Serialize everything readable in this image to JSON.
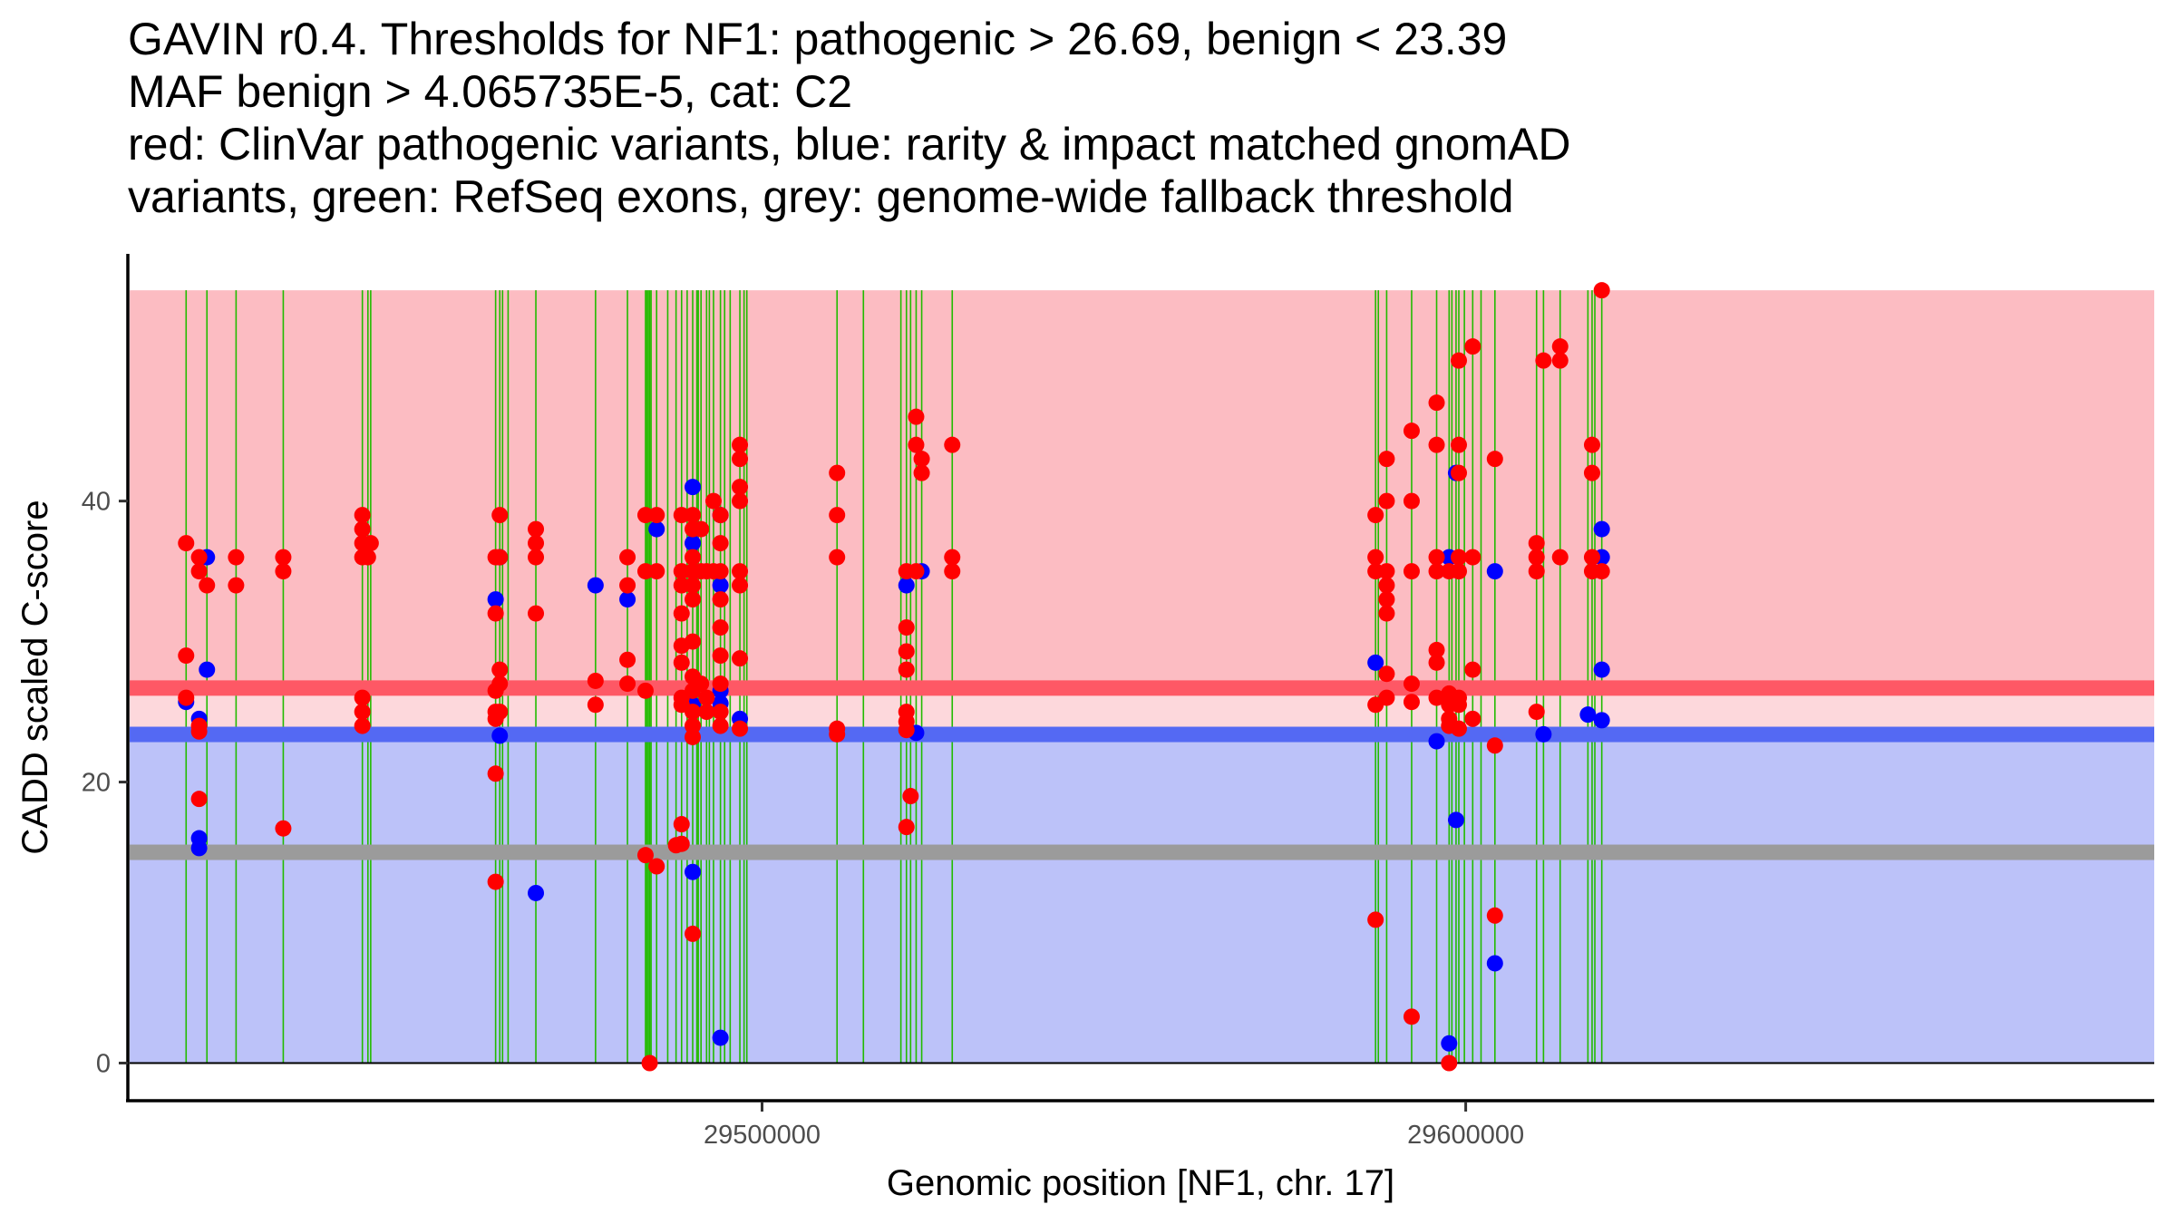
{
  "chart_data": {
    "type": "scatter",
    "title_lines": [
      "GAVIN r0.4. Thresholds for NF1: pathogenic > 26.69, benign < 23.39",
      "MAF benign > 4.065735E-5, cat: C2",
      "red: ClinVar pathogenic variants, blue: rarity & impact matched gnomAD",
      "variants, green: RefSeq exons, grey: genome-wide fallback threshold"
    ],
    "xlabel": "Genomic position [NF1, chr. 17]",
    "ylabel": "CADD scaled C-score",
    "xlim": [
      29408000,
      29696000
    ],
    "ylim": [
      -5.5,
      57
    ],
    "x_ticks": [
      29500000,
      29600000
    ],
    "x_tick_labels": [
      "29500000",
      "29600000"
    ],
    "y_ticks": [
      0,
      20,
      40
    ],
    "y_tick_labels": [
      "0",
      "20",
      "40"
    ],
    "grid": false,
    "regions": [
      {
        "name": "pathogenic-region",
        "ymin": 26.69,
        "ymax": 55,
        "color": "#fcbcc2"
      },
      {
        "name": "vous-region",
        "ymin": 23.39,
        "ymax": 26.69,
        "color": "#fdd8dc"
      },
      {
        "name": "benign-region",
        "ymin": 0,
        "ymax": 23.39,
        "color": "#bcc2f9"
      }
    ],
    "thresholds": [
      {
        "name": "pathogenic-threshold",
        "value": 26.69,
        "color": "#fe5865"
      },
      {
        "name": "benign-threshold",
        "value": 23.39,
        "color": "#5469f3"
      },
      {
        "name": "fallback-threshold",
        "value": 15.0,
        "color": "#9b9b9b"
      }
    ],
    "exons": [
      29418152,
      29421110,
      29425252,
      29431958,
      29443200,
      29443990,
      29444384,
      29462136,
      29462728,
      29463122,
      29463911,
      29467856,
      29476337,
      29480874,
      29483438,
      29483635,
      29483832,
      29484030,
      29484227,
      29485016,
      29486594,
      29487777,
      29488566,
      29489355,
      29490144,
      29490736,
      29490933,
      29491327,
      29492116,
      29492511,
      29493103,
      29494089,
      29494681,
      29495470,
      29496850,
      29497442,
      29497837,
      29510657,
      29514404,
      29519730,
      29520519,
      29521110,
      29521899,
      29522688,
      29527027,
      29587187,
      29587581,
      29588765,
      29592315,
      29595866,
      29597641,
      29598035,
      29598627,
      29599021,
      29599810,
      29600994,
      29602177,
      29604150,
      29610067,
      29611053,
      29613420,
      29617365,
      29617957,
      29618351,
      29619337
    ],
    "exon_color": "#22bb00",
    "series": [
      {
        "name": "ClinVar pathogenic",
        "color": "#ff0000",
        "points": [
          [
            29420000,
            36
          ],
          [
            29420000,
            35
          ],
          [
            29420000,
            24
          ],
          [
            29420000,
            23.6
          ],
          [
            29420000,
            18.8
          ],
          [
            29418152,
            37
          ],
          [
            29418152,
            29
          ],
          [
            29418152,
            26
          ],
          [
            29421110,
            34
          ],
          [
            29425252,
            36
          ],
          [
            29425252,
            34
          ],
          [
            29431958,
            36
          ],
          [
            29431958,
            35
          ],
          [
            29431958,
            16.7
          ],
          [
            29443200,
            39
          ],
          [
            29443200,
            38
          ],
          [
            29443200,
            37
          ],
          [
            29443200,
            36
          ],
          [
            29443200,
            26
          ],
          [
            29443200,
            25
          ],
          [
            29443200,
            24
          ],
          [
            29443990,
            36
          ],
          [
            29444384,
            37
          ],
          [
            29462136,
            36
          ],
          [
            29462136,
            32
          ],
          [
            29462136,
            26.5
          ],
          [
            29462136,
            25
          ],
          [
            29462136,
            24.5
          ],
          [
            29462136,
            20.6
          ],
          [
            29462136,
            12.9
          ],
          [
            29462728,
            39
          ],
          [
            29462728,
            36
          ],
          [
            29462728,
            28
          ],
          [
            29462728,
            27
          ],
          [
            29462728,
            25
          ],
          [
            29467856,
            38
          ],
          [
            29467856,
            37
          ],
          [
            29467856,
            36
          ],
          [
            29467856,
            32
          ],
          [
            29476337,
            27.2
          ],
          [
            29476337,
            25.5
          ],
          [
            29480874,
            36
          ],
          [
            29480874,
            34
          ],
          [
            29480874,
            28.7
          ],
          [
            29480874,
            27
          ],
          [
            29483438,
            39
          ],
          [
            29483438,
            35
          ],
          [
            29483438,
            26.5
          ],
          [
            29483438,
            14.8
          ],
          [
            29484030,
            0
          ],
          [
            29485016,
            39
          ],
          [
            29485016,
            35
          ],
          [
            29485016,
            14
          ],
          [
            29487777,
            15.5
          ],
          [
            29488566,
            39
          ],
          [
            29488566,
            35
          ],
          [
            29488566,
            34
          ],
          [
            29488566,
            32
          ],
          [
            29488566,
            29.7
          ],
          [
            29488566,
            28.5
          ],
          [
            29488566,
            26
          ],
          [
            29488566,
            25.5
          ],
          [
            29488566,
            17
          ],
          [
            29488566,
            15.6
          ],
          [
            29490144,
            39
          ],
          [
            29490144,
            38
          ],
          [
            29490144,
            36
          ],
          [
            29490144,
            35
          ],
          [
            29490144,
            34
          ],
          [
            29490144,
            33
          ],
          [
            29490144,
            30
          ],
          [
            29490144,
            27.5
          ],
          [
            29490144,
            26.5
          ],
          [
            29490144,
            25
          ],
          [
            29490144,
            24
          ],
          [
            29490144,
            23.2
          ],
          [
            29490144,
            9.2
          ],
          [
            29491327,
            38
          ],
          [
            29491327,
            35
          ],
          [
            29491327,
            27
          ],
          [
            29492116,
            35
          ],
          [
            29492116,
            26
          ],
          [
            29492116,
            25
          ],
          [
            29493103,
            40
          ],
          [
            29493103,
            35
          ],
          [
            29494089,
            39
          ],
          [
            29494089,
            37
          ],
          [
            29494089,
            35
          ],
          [
            29494089,
            33
          ],
          [
            29494089,
            31
          ],
          [
            29494089,
            29
          ],
          [
            29494089,
            27
          ],
          [
            29494089,
            25
          ],
          [
            29494089,
            24
          ],
          [
            29496850,
            44
          ],
          [
            29496850,
            43
          ],
          [
            29496850,
            41
          ],
          [
            29496850,
            40
          ],
          [
            29496850,
            35
          ],
          [
            29496850,
            34
          ],
          [
            29496850,
            28.8
          ],
          [
            29496850,
            23.8
          ],
          [
            29510657,
            42
          ],
          [
            29510657,
            39
          ],
          [
            29510657,
            36
          ],
          [
            29510657,
            23.8
          ],
          [
            29510657,
            23.4
          ],
          [
            29520519,
            35
          ],
          [
            29520519,
            31
          ],
          [
            29520519,
            29.3
          ],
          [
            29520519,
            28
          ],
          [
            29520519,
            25
          ],
          [
            29520519,
            24.3
          ],
          [
            29520519,
            23.7
          ],
          [
            29520519,
            16.8
          ],
          [
            29521110,
            19
          ],
          [
            29521899,
            46
          ],
          [
            29521899,
            44
          ],
          [
            29521899,
            35
          ],
          [
            29522688,
            43
          ],
          [
            29522688,
            42
          ],
          [
            29527027,
            44
          ],
          [
            29527027,
            36
          ],
          [
            29527027,
            35
          ],
          [
            29587187,
            39
          ],
          [
            29587187,
            36
          ],
          [
            29587187,
            35
          ],
          [
            29587187,
            25.5
          ],
          [
            29587187,
            10.2
          ],
          [
            29588765,
            43
          ],
          [
            29588765,
            40
          ],
          [
            29588765,
            35
          ],
          [
            29588765,
            34
          ],
          [
            29588765,
            33
          ],
          [
            29588765,
            32
          ],
          [
            29588765,
            27.7
          ],
          [
            29588765,
            26
          ],
          [
            29592315,
            45
          ],
          [
            29592315,
            40
          ],
          [
            29592315,
            35
          ],
          [
            29592315,
            27
          ],
          [
            29592315,
            25.7
          ],
          [
            29592315,
            3.3
          ],
          [
            29595866,
            47
          ],
          [
            29595866,
            44
          ],
          [
            29595866,
            36
          ],
          [
            29595866,
            35
          ],
          [
            29595866,
            29.4
          ],
          [
            29595866,
            28.5
          ],
          [
            29595866,
            26
          ],
          [
            29597641,
            35
          ],
          [
            29597641,
            26.3
          ],
          [
            29597641,
            25.5
          ],
          [
            29597641,
            24.5
          ],
          [
            29597641,
            24
          ],
          [
            29597641,
            0
          ],
          [
            29599021,
            50
          ],
          [
            29599021,
            44
          ],
          [
            29599021,
            42
          ],
          [
            29599021,
            36
          ],
          [
            29599021,
            35
          ],
          [
            29599021,
            26
          ],
          [
            29599021,
            25.5
          ],
          [
            29599021,
            23.8
          ],
          [
            29600994,
            51
          ],
          [
            29600994,
            36
          ],
          [
            29600994,
            28
          ],
          [
            29600994,
            24.5
          ],
          [
            29604150,
            43
          ],
          [
            29604150,
            22.6
          ],
          [
            29604150,
            10.5
          ],
          [
            29610067,
            37
          ],
          [
            29610067,
            36
          ],
          [
            29610067,
            35
          ],
          [
            29610067,
            25
          ],
          [
            29613420,
            51
          ],
          [
            29613420,
            50
          ],
          [
            29613420,
            36
          ],
          [
            29611053,
            50
          ],
          [
            29617957,
            44
          ],
          [
            29617957,
            42
          ],
          [
            29617957,
            36
          ],
          [
            29617957,
            35
          ],
          [
            29619337,
            55
          ],
          [
            29619337,
            35
          ]
        ]
      },
      {
        "name": "gnomAD matched",
        "color": "#0000ff",
        "points": [
          [
            29420000,
            24.5
          ],
          [
            29420000,
            16
          ],
          [
            29420000,
            15.3
          ],
          [
            29418152,
            25.7
          ],
          [
            29421110,
            36
          ],
          [
            29421110,
            28
          ],
          [
            29462136,
            33
          ],
          [
            29462728,
            36
          ],
          [
            29462728,
            23.3
          ],
          [
            29467856,
            12.1
          ],
          [
            29476337,
            34
          ],
          [
            29480874,
            33
          ],
          [
            29485016,
            38
          ],
          [
            29490144,
            41
          ],
          [
            29490144,
            37
          ],
          [
            29490144,
            25.5
          ],
          [
            29490144,
            13.6
          ],
          [
            29494089,
            34
          ],
          [
            29494089,
            39
          ],
          [
            29494089,
            26.5
          ],
          [
            29494089,
            25.6
          ],
          [
            29494089,
            1.8
          ],
          [
            29496850,
            24.5
          ],
          [
            29520519,
            34
          ],
          [
            29521899,
            23.5
          ],
          [
            29522688,
            35
          ],
          [
            29587187,
            28.5
          ],
          [
            29595866,
            22.9
          ],
          [
            29597641,
            36
          ],
          [
            29597641,
            1.4
          ],
          [
            29598627,
            17.3
          ],
          [
            29598627,
            42
          ],
          [
            29604150,
            35
          ],
          [
            29604150,
            7.1
          ],
          [
            29611053,
            23.4
          ],
          [
            29617365,
            24.8
          ],
          [
            29619337,
            38
          ],
          [
            29619337,
            36
          ],
          [
            29619337,
            28
          ],
          [
            29619337,
            24.4
          ]
        ]
      }
    ]
  }
}
